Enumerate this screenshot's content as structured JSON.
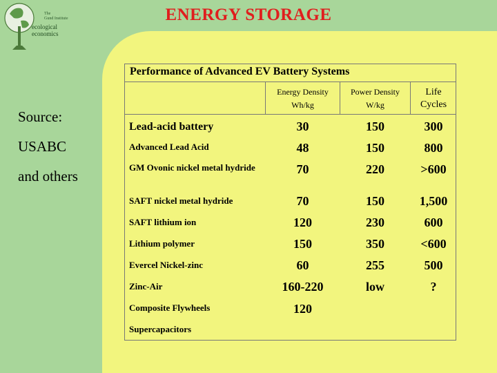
{
  "header": {
    "title": "ENERGY STORAGE",
    "logo_small_line1": "The",
    "logo_small_line2": "Gund Institute",
    "logo_line1": "ecological",
    "logo_line2": "economics"
  },
  "source": {
    "line1": "Source:",
    "line2": "USABC",
    "line3": "and others"
  },
  "table": {
    "title": "Performance of Advanced EV Battery Systems",
    "columns": [
      {
        "line1": "Energy Density",
        "line2": "Wh/kg"
      },
      {
        "line1": "Power Density",
        "line2": "W/kg"
      },
      {
        "line1": "Life",
        "line2": "Cycles"
      }
    ],
    "rows": [
      {
        "label": "Lead-acid battery",
        "energy": "30",
        "power": "150",
        "life": "300"
      },
      {
        "label": "Advanced Lead Acid",
        "energy": "48",
        "power": "150",
        "life": "800"
      },
      {
        "label": "GM Ovonic nickel metal hydride",
        "energy": "70",
        "power": "220",
        "life": ">600"
      },
      {
        "label": "SAFT nickel metal hydride",
        "energy": "70",
        "power": "150",
        "life": "1,500"
      },
      {
        "label": "SAFT lithium ion",
        "energy": "120",
        "power": "230",
        "life": "600"
      },
      {
        "label": "Lithium polymer",
        "energy": "150",
        "power": "350",
        "life": "<600"
      },
      {
        "label": "Evercel Nickel-zinc",
        "energy": "60",
        "power": "255",
        "life": "500"
      },
      {
        "label": "Zinc-Air",
        "energy": "160-220",
        "power": "low",
        "life": "?"
      },
      {
        "label": "Composite Flywheels",
        "energy": "120",
        "power": "",
        "life": ""
      },
      {
        "label": "Supercapacitors",
        "energy": "",
        "power": "",
        "life": ""
      }
    ]
  },
  "colors": {
    "background": "#F2F57E",
    "band": "#A8D69A",
    "title": "#E01E1E"
  }
}
